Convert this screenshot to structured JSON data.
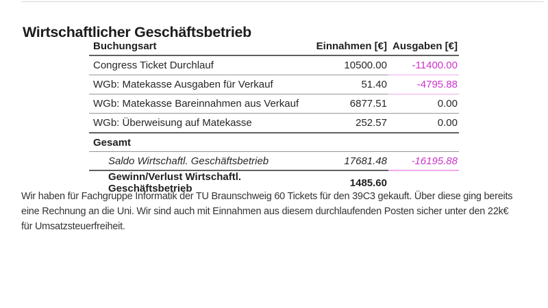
{
  "page": {
    "title": "Wirtschaftlicher Geschäftsbetrieb"
  },
  "colors": {
    "negative_value": "#cc33cc",
    "negative_border": "#f0aaee",
    "row_border": "#969696",
    "strong_border": "#5f5f5f"
  },
  "table": {
    "headers": {
      "booking_type": "Buchungsart",
      "income": "Einnahmen [€]",
      "expenses": "Ausgaben [€]"
    },
    "rows": [
      {
        "label": "Congress Ticket Durchlauf",
        "einnahmen": "10500.00",
        "ausgaben": "-11400.00"
      },
      {
        "label": "WGb: Matekasse Ausgaben für Verkauf",
        "einnahmen": "51.40",
        "ausgaben": "-4795.88"
      },
      {
        "label": "WGb: Matekasse Bareinnahmen aus Verkauf",
        "einnahmen": "6877.51",
        "ausgaben": "0.00"
      },
      {
        "label": "WGb: Überweisung auf Matekasse",
        "einnahmen": "252.57",
        "ausgaben": "0.00"
      }
    ],
    "section_label": "Gesamt",
    "saldo_row": {
      "label": "Saldo Wirtschaftl. Geschäftsbetrieb",
      "einnahmen": "17681.48",
      "ausgaben": "-16195.88"
    },
    "result_row": {
      "label": "Gewinn/Verlust Wirtschaftl. Geschäftsbetrieb",
      "einnahmen": "1485.60"
    }
  },
  "paragraph": {
    "full_text": "Wir haben für Fachgruppe Informatik der TU Braunschweig 60 Tickets für den 39C3 gekauft. Über diese ging bereits eine Rechnung an die Uni. Wir sind auch mit Einnahmen aus diesem durchlaufenden Posten sicher unter den 22k€ für Umsatzsteuerfreiheit.",
    "lines": [
      "Wir haben für Fachgruppe Informatik der TU Braunschweig 60 Tickets für den 39C3 gekauft. Über diese ging bereits",
      "eine Rechnung an die Uni. Wir sind auch mit Einnahmen aus diesem durchlaufenden Posten sicher unter den 22k€",
      "für Umsatzsteuerfreiheit."
    ]
  }
}
